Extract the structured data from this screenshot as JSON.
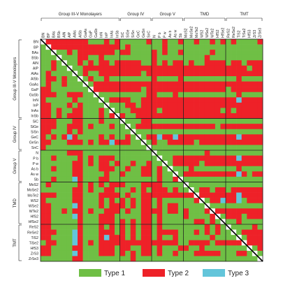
{
  "chart_data": {
    "type": "heatmap",
    "title": "",
    "materials": [
      "BN",
      "BP",
      "BAs",
      "BSb",
      "AlN",
      "AlP",
      "AlAs",
      "AlSb",
      "GaAs",
      "GaP",
      "GaSb",
      "InN",
      "InP",
      "InAs",
      "InSb",
      "SiC",
      "SiGe",
      "SiSn",
      "GeC",
      "GeSn",
      "SnC",
      "N",
      "P_b",
      "P_w",
      "As_b",
      "As_w",
      "Sb",
      "MoS2",
      "MoSe2",
      "MoTe2",
      "WS2",
      "WSe2",
      "WTe2",
      "HfS2",
      "HfSe2",
      "ReS2",
      "ReSe2",
      "TiS2",
      "TiSe2",
      "HfS3",
      "ZrS3",
      "ZrSe3"
    ],
    "groups": [
      {
        "name": "Group III-V Monolayers",
        "start": 0,
        "end": 14
      },
      {
        "name": "Group IV",
        "start": 15,
        "end": 20
      },
      {
        "name": "Group V",
        "start": 21,
        "end": 26
      },
      {
        "name": "TMD",
        "start": 27,
        "end": 34
      },
      {
        "name": "TMT",
        "start": 35,
        "end": 41
      }
    ],
    "categories": [
      {
        "code": 1,
        "name": "Type 1",
        "color": "#6fbf45"
      },
      {
        "code": 2,
        "name": "Type 2",
        "color": "#ee2128"
      },
      {
        "code": 3,
        "name": "Type 3",
        "color": "#63c5da"
      }
    ],
    "diagonal_color": "#ffffff",
    "diagonal_line_color": "#000000",
    "legend_position": "bottom",
    "matrix_rows": [
      "022222222111212111112112112112112121211112",
      "102222222222222121111112111111111111111111",
      "110112122222221221111212112111112111111111",
      "111011122112111111111211111111121111111111",
      "112101121212212222211212122121122221221222",
      "112110112222222222222222222222222222222122",
      "121111012112222222212222222222222222222222",
      "122121101211211111111211112111111111121111",
      "121121110122222222222222222222222222222222",
      "221111111022222222212222222222222221222222",
      "222112221101111111112211121111111111121111",
      "211111211110122221122222222222222222232222",
      "221112121111011122122222222222222222222222",
      "221211221112101112222212222222222212122222",
      "221212221112120211222222222222222222222222",
      "222111221112111011122111111111111111111111",
      "222112221211121101222222222222222122222222",
      "221112121111111110111111111111111111111111",
      "212123211112121121012232232222222222232222",
      "221112221212232221101211222221222222222222",
      "211111111111111111110111111111111111111111",
      "111112221111111111111011111111121111111111",
      "112111121212221111111101122222222222232222",
      "111111221212212112112110122222122222222222",
      "112111221112221121122121011121111111121111",
      "111111221111211211122121101222222222232122",
      "112111321112211111111121120111111111111111",
      "121111121212122211122221111011111111111111",
      "111111221211221112121222121101221221222222",
      "222111221112222121122222222220222222232222",
      "211111221112121212122121111112012232231222",
      "221111321112122212122121221111101111111111",
      "221121221211222121122221221211120222222222",
      "221111321112221111122121111211112012221222",
      "221111121112221212122121111112212101121111",
      "221111121112121212122121111111121210111121",
      "222111321112221212122122221112121211012222",
      "221111321112322212122121121111112111101222",
      "122111321212222222222222221122221222220222",
      "221111221112221221122121112211211111111012",
      "221111321112221212122121121112222211122101",
      "111111221111111112111111111111111111111110"
    ]
  }
}
